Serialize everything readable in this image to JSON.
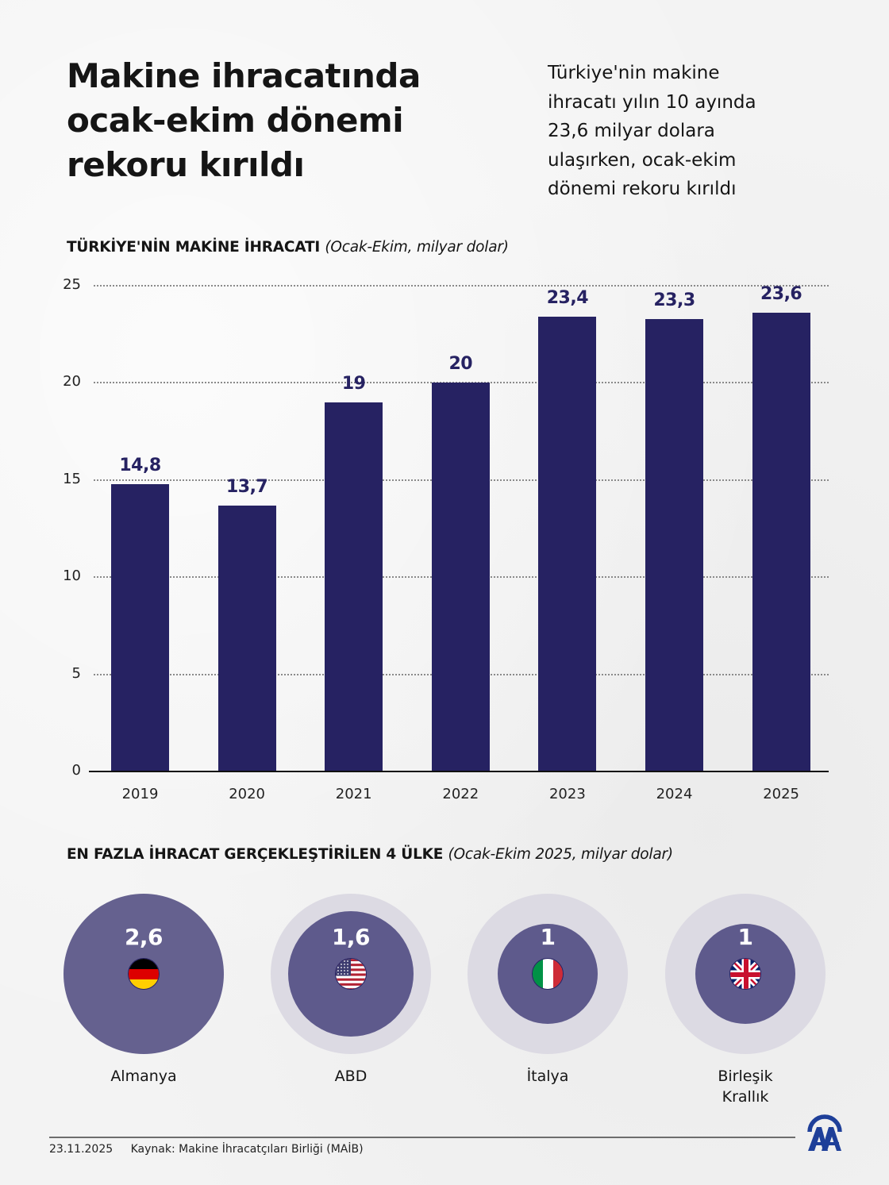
{
  "header": {
    "title_lines": [
      "Makine ihracatında",
      "ocak-ekim dönemi",
      "rekoru kırıldı"
    ],
    "subtitle_lines": [
      "Türkiye'nin makine",
      "ihracatı yılın 10 ayında",
      "23,6 milyar dolara",
      "ulaşırken, ocak-ekim",
      "dönemi rekoru kırıldı"
    ]
  },
  "bar_section": {
    "heading": "TÜRKİYE'NİN MAKİNE İHRACATI",
    "note": "(Ocak-Ekim, milyar dolar)"
  },
  "bubble_section": {
    "heading": "EN FAZLA İHRACAT GERÇEKLEŞTİRİLEN 4 ÜLKE",
    "note": "(Ocak-Ekim 2025, milyar dolar)"
  },
  "colors": {
    "bar": "#262262",
    "bubble_full": "#65618f",
    "bubble_inner": "#5e5a8c",
    "bubble_outer": "#dcdae3",
    "background": "#f3f3f3",
    "logo": "#1e3f99"
  },
  "chart_data": [
    {
      "type": "bar",
      "title": "TÜRKİYE'NİN MAKİNE İHRACATI (Ocak-Ekim, milyar dolar)",
      "xlabel": "",
      "ylabel": "",
      "categories": [
        "2019",
        "2020",
        "2021",
        "2022",
        "2023",
        "2024",
        "2025"
      ],
      "values": [
        14.8,
        13.7,
        19,
        20,
        23.4,
        23.3,
        23.6
      ],
      "value_labels": [
        "14,8",
        "13,7",
        "19",
        "20",
        "23,4",
        "23,3",
        "23,6"
      ],
      "ylim": [
        0,
        25
      ],
      "yticks": [
        0,
        5,
        10,
        15,
        20,
        25
      ],
      "grid": "horizontal dotted",
      "legend": "none"
    },
    {
      "type": "bubble",
      "title": "EN FAZLA İHRACAT GERÇEKLEŞTİRİLEN 4 ÜLKE (Ocak-Ekim 2025, milyar dolar)",
      "categories": [
        "Almanya",
        "ABD",
        "İtalya",
        "Birleşik Krallık"
      ],
      "values": [
        2.6,
        1.6,
        1,
        1
      ],
      "value_labels": [
        "2,6",
        "1,6",
        "1",
        "1"
      ],
      "flags": [
        "germany-flag",
        "usa-flag",
        "italy-flag",
        "uk-flag"
      ]
    }
  ],
  "footer": {
    "date": "23.11.2025",
    "source": "Kaynak: Makine İhracatçıları Birliği (MAİB)",
    "logo": "aa-logo"
  }
}
